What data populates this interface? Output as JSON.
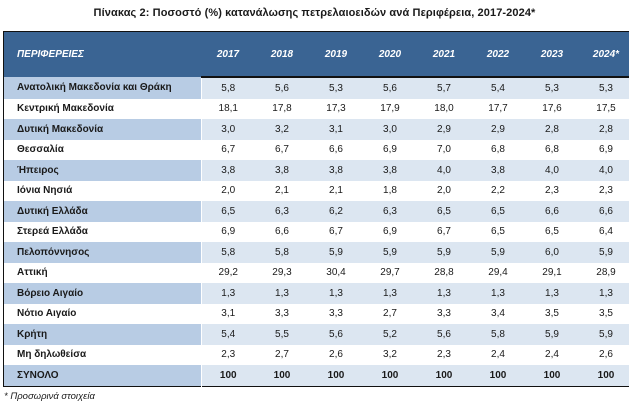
{
  "title": "Πίνακας 2: Ποσοστό (%) κατανάλωσης πετρελαιοειδών ανά Περιφέρεια, 2017-2024*",
  "footnote": "* Προσωρινά στοιχεία",
  "colors": {
    "header_bg": "#3A6493",
    "header_text": "#FFFFFF",
    "shaded_region_cell": "#B8CCE4",
    "shaded_value_cell": "#DCE6F1",
    "body_text": "#1A1A1A",
    "border": "#111111"
  },
  "table": {
    "header_label": "ΠΕΡΙΦΕΡΕΙΕΣ",
    "years": [
      "2017",
      "2018",
      "2019",
      "2020",
      "2021",
      "2022",
      "2023",
      "2024*"
    ],
    "rows": [
      {
        "region": "Ανατολική Μακεδονία και Θράκη",
        "values": [
          "5,8",
          "5,6",
          "5,3",
          "5,6",
          "5,7",
          "5,4",
          "5,3",
          "5,3"
        ]
      },
      {
        "region": "Κεντρική Μακεδονία",
        "values": [
          "18,1",
          "17,8",
          "17,3",
          "17,9",
          "18,0",
          "17,7",
          "17,6",
          "17,5"
        ]
      },
      {
        "region": "Δυτική Μακεδονία",
        "values": [
          "3,0",
          "3,2",
          "3,1",
          "3,0",
          "2,9",
          "2,9",
          "2,8",
          "2,8"
        ]
      },
      {
        "region": "Θεσσαλία",
        "values": [
          "6,7",
          "6,7",
          "6,6",
          "6,9",
          "7,0",
          "6,8",
          "6,8",
          "6,9"
        ]
      },
      {
        "region": "Ήπειρος",
        "values": [
          "3,8",
          "3,8",
          "3,8",
          "3,8",
          "4,0",
          "3,8",
          "4,0",
          "4,0"
        ]
      },
      {
        "region": "Ιόνια Νησιά",
        "values": [
          "2,0",
          "2,1",
          "2,1",
          "1,8",
          "2,0",
          "2,2",
          "2,3",
          "2,3"
        ]
      },
      {
        "region": "Δυτική Ελλάδα",
        "values": [
          "6,5",
          "6,3",
          "6,2",
          "6,3",
          "6,5",
          "6,5",
          "6,6",
          "6,6"
        ]
      },
      {
        "region": "Στερεά Ελλάδα",
        "values": [
          "6,9",
          "6,6",
          "6,7",
          "6,9",
          "6,7",
          "6,5",
          "6,5",
          "6,4"
        ]
      },
      {
        "region": "Πελοπόννησος",
        "values": [
          "5,8",
          "5,8",
          "5,9",
          "5,9",
          "5,9",
          "5,9",
          "6,0",
          "5,9"
        ]
      },
      {
        "region": "Αττική",
        "values": [
          "29,2",
          "29,3",
          "30,4",
          "29,7",
          "28,8",
          "29,4",
          "29,1",
          "28,9"
        ]
      },
      {
        "region": "Βόρειο Αιγαίο",
        "values": [
          "1,3",
          "1,3",
          "1,3",
          "1,3",
          "1,3",
          "1,3",
          "1,3",
          "1,3"
        ]
      },
      {
        "region": "Νότιο Αιγαίο",
        "values": [
          "3,1",
          "3,3",
          "3,3",
          "2,7",
          "3,3",
          "3,4",
          "3,5",
          "3,5"
        ]
      },
      {
        "region": "Κρήτη",
        "values": [
          "5,4",
          "5,5",
          "5,6",
          "5,2",
          "5,6",
          "5,8",
          "5,9",
          "5,9"
        ]
      },
      {
        "region": "Μη δηλωθείσα",
        "values": [
          "2,3",
          "2,7",
          "2,6",
          "3,2",
          "2,3",
          "2,4",
          "2,4",
          "2,6"
        ]
      },
      {
        "region": "ΣΥΝΟΛΟ",
        "values": [
          "100",
          "100",
          "100",
          "100",
          "100",
          "100",
          "100",
          "100"
        ],
        "is_total": true
      }
    ]
  }
}
